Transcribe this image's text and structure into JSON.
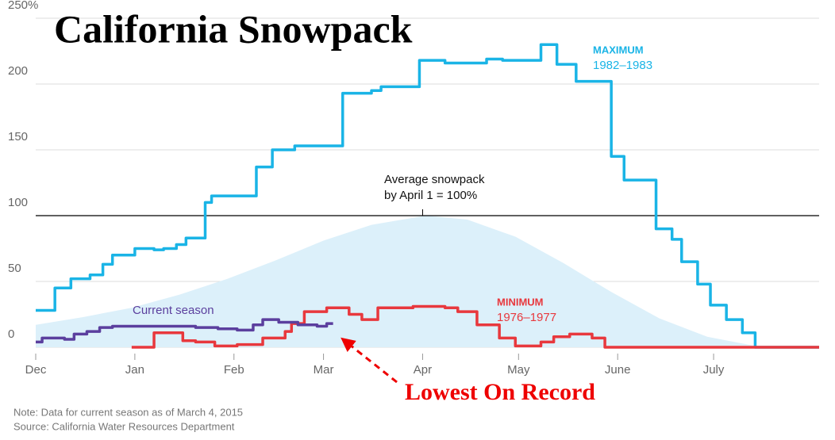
{
  "chart_data": {
    "type": "line",
    "title": "California Snowpack",
    "step": true,
    "grid": true,
    "xlim": [
      0,
      245
    ],
    "xticks": [
      {
        "value": 0,
        "label": "Dec"
      },
      {
        "value": 31,
        "label": "Jan"
      },
      {
        "value": 62,
        "label": "Feb"
      },
      {
        "value": 90,
        "label": "Mar"
      },
      {
        "value": 121,
        "label": "Apr"
      },
      {
        "value": 151,
        "label": "May"
      },
      {
        "value": 182,
        "label": "June"
      },
      {
        "value": 212,
        "label": "July"
      }
    ],
    "ylim": [
      0,
      250
    ],
    "yticks": [
      0,
      50,
      100,
      150,
      200,
      {
        "value": 250,
        "label": "250%"
      }
    ],
    "reference_line": 100,
    "average": {
      "color": "#dcf0fa",
      "label": [
        "Average snowpack",
        "by April 1 = 100%"
      ],
      "x": [
        0,
        15,
        30,
        45,
        60,
        75,
        90,
        105,
        122,
        135,
        150,
        165,
        180,
        195,
        210,
        225,
        232
      ],
      "values": [
        17,
        23,
        30,
        40,
        52,
        66,
        81,
        93,
        100,
        97,
        84,
        64,
        42,
        22,
        8,
        1,
        0
      ]
    },
    "series": [
      {
        "name": "MAXIMUM",
        "period": "1982–1983",
        "color": "#1ab4e6",
        "x": [
          0,
          6,
          11,
          17,
          21,
          24,
          31,
          37,
          40,
          44,
          47,
          53,
          55,
          69,
          74,
          81,
          96,
          105,
          108,
          120,
          128,
          141,
          146,
          158,
          163,
          169,
          180,
          184,
          194,
          199,
          202,
          207,
          211,
          216,
          221,
          225,
          245
        ],
        "values": [
          28,
          45,
          52,
          55,
          63,
          70,
          75,
          74,
          75,
          78,
          83,
          110,
          115,
          137,
          150,
          153,
          193,
          195,
          198,
          218,
          216,
          219,
          218,
          230,
          215,
          202,
          145,
          127,
          90,
          82,
          65,
          48,
          32,
          21,
          11,
          0,
          0
        ]
      },
      {
        "name": "MINIMUM",
        "period": "1976–1977",
        "color": "#e8383d",
        "x": [
          30,
          37,
          46,
          50,
          56,
          63,
          71,
          78,
          80,
          84,
          91,
          98,
          102,
          107,
          118,
          128,
          132,
          138,
          145,
          150,
          158,
          162,
          167,
          174,
          178,
          245
        ],
        "values": [
          0,
          11,
          5,
          4,
          1,
          2,
          7,
          12,
          18,
          27,
          30,
          25,
          21,
          30,
          31,
          30,
          27,
          17,
          7,
          1,
          4,
          8,
          10,
          7,
          0,
          0
        ]
      },
      {
        "name": "Current season",
        "color": "#5b3f9e",
        "x": [
          0,
          2,
          9,
          12,
          16,
          20,
          24,
          50,
          57,
          63,
          68,
          71,
          76,
          82,
          88,
          91,
          93
        ],
        "values": [
          4,
          7,
          6,
          10,
          12,
          15,
          16,
          15,
          14,
          13,
          17,
          21,
          19,
          17,
          16,
          18,
          18
        ]
      }
    ],
    "annotation": "Lowest On Record",
    "notes": [
      "Note: Data for current season as of March 4, 2015",
      "Source: California Water Resources Department"
    ]
  }
}
